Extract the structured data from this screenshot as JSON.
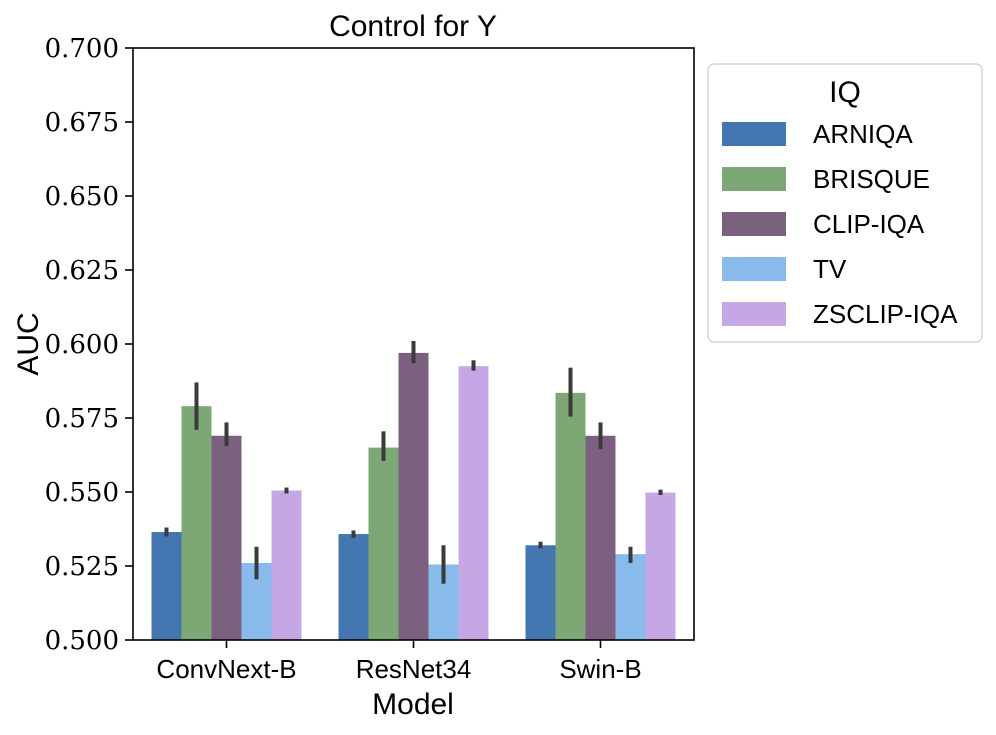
{
  "chart_data": {
    "type": "bar",
    "title": "Control for Y",
    "xlabel": "Model",
    "ylabel": "AUC",
    "ylim": [
      0.5,
      0.7
    ],
    "yticks": [
      "0.500",
      "0.525",
      "0.550",
      "0.575",
      "0.600",
      "0.625",
      "0.650",
      "0.675",
      "0.700"
    ],
    "categories": [
      "ConvNext-B",
      "ResNet34",
      "Swin-B"
    ],
    "legend": {
      "title": "IQ",
      "placement": "outside-right-top"
    },
    "series": [
      {
        "name": "ARNIQA",
        "color": "#4477AF",
        "values": [
          0.5365,
          0.5358,
          0.532
        ],
        "err_low": [
          0.535,
          0.5345,
          0.531
        ],
        "err_high": [
          0.538,
          0.537,
          0.5332
        ]
      },
      {
        "name": "BRISQUE",
        "color": "#7DA876",
        "values": [
          0.579,
          0.565,
          0.5835
        ],
        "err_low": [
          0.571,
          0.5605,
          0.5755
        ],
        "err_high": [
          0.587,
          0.5705,
          0.592
        ]
      },
      {
        "name": "CLIP-IQA",
        "color": "#7C6080",
        "values": [
          0.569,
          0.597,
          0.569
        ],
        "err_low": [
          0.5655,
          0.5935,
          0.5645
        ],
        "err_high": [
          0.5735,
          0.601,
          0.5735
        ]
      },
      {
        "name": "TV",
        "color": "#88BAEC",
        "values": [
          0.526,
          0.5255,
          0.529
        ],
        "err_low": [
          0.5205,
          0.519,
          0.526
        ],
        "err_high": [
          0.5315,
          0.532,
          0.5315
        ]
      },
      {
        "name": "ZSCLIP-IQA",
        "color": "#C6A7E5",
        "values": [
          0.5505,
          0.5925,
          0.5498
        ],
        "err_low": [
          0.5495,
          0.591,
          0.549
        ],
        "err_high": [
          0.5515,
          0.5945,
          0.5508
        ]
      }
    ],
    "errorbar_color": "#3a3a3a"
  }
}
